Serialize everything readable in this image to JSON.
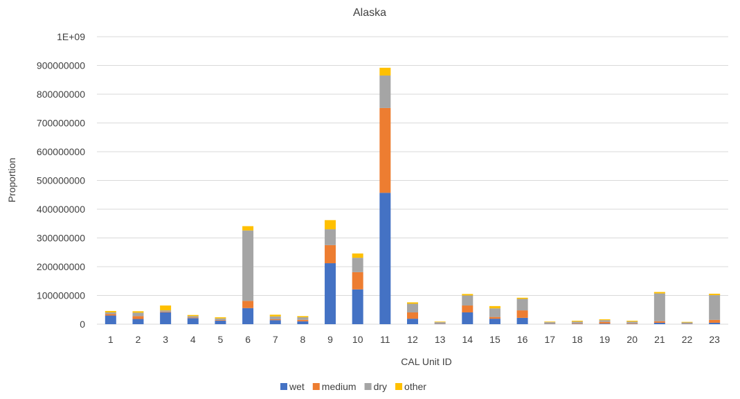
{
  "chart_data": {
    "type": "bar",
    "stacked": true,
    "title": "Alaska",
    "xlabel": "CAL Unit ID",
    "ylabel": "Proportion",
    "ylim": [
      0,
      1000000000
    ],
    "y_ticks": [
      "0",
      "100000000",
      "200000000",
      "300000000",
      "400000000",
      "500000000",
      "600000000",
      "700000000",
      "800000000",
      "900000000",
      "1E+09"
    ],
    "categories": [
      "1",
      "2",
      "3",
      "4",
      "5",
      "6",
      "7",
      "8",
      "9",
      "10",
      "11",
      "12",
      "13",
      "14",
      "15",
      "16",
      "17",
      "18",
      "19",
      "20",
      "21",
      "22",
      "23"
    ],
    "series": [
      {
        "name": "wet",
        "color": "#4472c4",
        "values": [
          30000000,
          18000000,
          41000000,
          21000000,
          12000000,
          56000000,
          14000000,
          10000000,
          212000000,
          121000000,
          457000000,
          19000000,
          1000000,
          41000000,
          19000000,
          22000000,
          1000000,
          1000000,
          2000000,
          1000000,
          5000000,
          1000000,
          5000000
        ]
      },
      {
        "name": "medium",
        "color": "#ed7d31",
        "values": [
          5000000,
          10000000,
          2000000,
          2000000,
          2000000,
          25000000,
          3000000,
          5000000,
          63000000,
          60000000,
          295000000,
          22000000,
          1000000,
          24000000,
          6000000,
          26000000,
          1000000,
          2000000,
          6000000,
          2000000,
          5000000,
          1000000,
          10000000
        ]
      },
      {
        "name": "dry",
        "color": "#a5a5a5",
        "values": [
          6000000,
          12000000,
          5000000,
          5000000,
          6000000,
          245000000,
          10000000,
          9000000,
          55000000,
          50000000,
          113000000,
          30000000,
          5000000,
          35000000,
          30000000,
          40000000,
          5000000,
          6000000,
          6000000,
          6000000,
          97000000,
          4000000,
          86000000
        ]
      },
      {
        "name": "other",
        "color": "#ffc000",
        "values": [
          5000000,
          5000000,
          17000000,
          4000000,
          4000000,
          15000000,
          6000000,
          4000000,
          32000000,
          15000000,
          27000000,
          5000000,
          2000000,
          5000000,
          8000000,
          4000000,
          2000000,
          3000000,
          3000000,
          3000000,
          5000000,
          2000000,
          5000000
        ]
      }
    ],
    "legend_position": "bottom",
    "grid": true
  }
}
